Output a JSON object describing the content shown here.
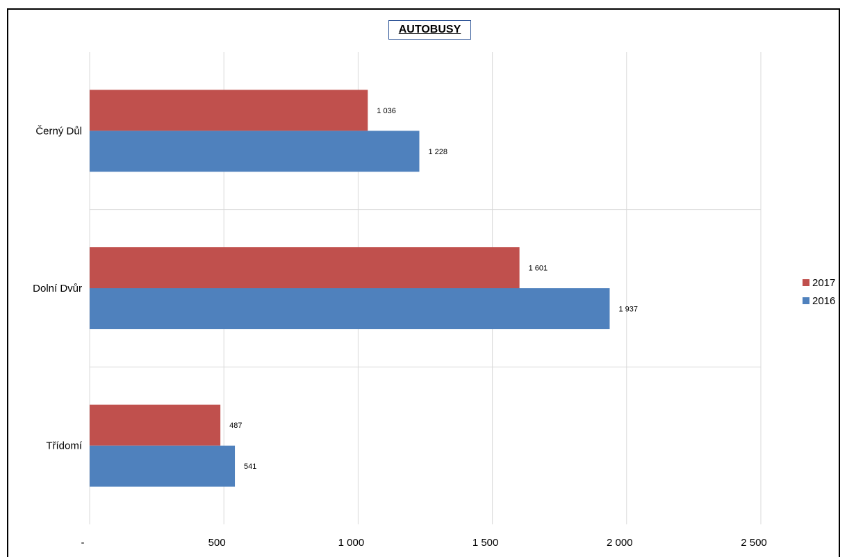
{
  "chart_data": {
    "type": "bar",
    "orientation": "horizontal",
    "title": "AUTOBUSY",
    "categories": [
      "Černý Důl",
      "Dolní Dvůr",
      "Třídomí"
    ],
    "series": [
      {
        "name": "2017",
        "color": "#c0504d",
        "values": [
          1036,
          1601,
          487
        ],
        "labels": [
          "1 036",
          "1 601",
          "487"
        ]
      },
      {
        "name": "2016",
        "color": "#4f81bd",
        "values": [
          1228,
          1937,
          541
        ],
        "labels": [
          "1 228",
          "1 937",
          "541"
        ]
      }
    ],
    "xlim": [
      0,
      2500
    ],
    "xticks": [
      0,
      500,
      1000,
      1500,
      2000,
      2500
    ],
    "xtick_labels": [
      "-",
      "500",
      "1 000",
      "1 500",
      "2 000",
      "2 500"
    ],
    "grid": true,
    "legend_position": "right"
  }
}
